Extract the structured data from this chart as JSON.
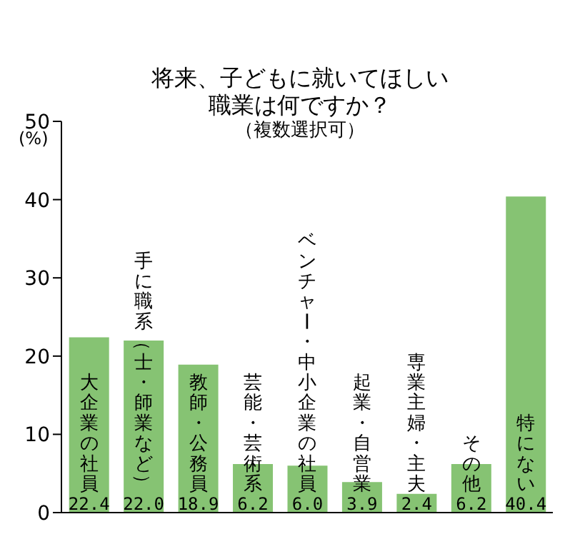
{
  "chart_data": {
    "type": "bar",
    "title": "将来、子どもに就いてほしい職業は何ですか？",
    "subtitle": "（複数選択可）",
    "ylabel": "(%)",
    "categories": [
      "大企業の社員",
      "手に職系（士・師業など）",
      "教師・公務員",
      "芸能・芸術系",
      "ベンチャー・中小企業の社員",
      "起業・自営業",
      "専業主婦・主夫",
      "その他",
      "特にない"
    ],
    "values": [
      22.4,
      22.0,
      18.9,
      6.2,
      6.0,
      3.9,
      2.4,
      6.2,
      40.4
    ],
    "value_labels": [
      "22.4",
      "22.0",
      "18.9",
      "6.2",
      "6.0",
      "3.9",
      "2.4",
      "6.2",
      "40.4"
    ],
    "color": "#86c373",
    "ylim": [
      0,
      50
    ],
    "yticks": [
      0,
      10,
      20,
      30,
      40,
      50
    ],
    "grid": false
  }
}
